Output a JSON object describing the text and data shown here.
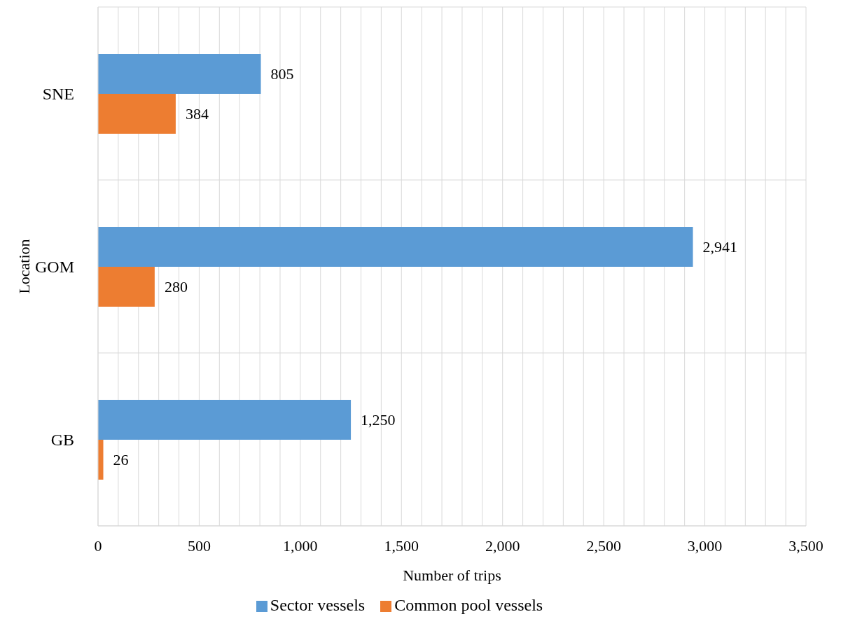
{
  "chart_data": {
    "type": "bar",
    "orientation": "horizontal",
    "xlabel": "Number of trips",
    "ylabel": "Location",
    "categories": [
      "SNE",
      "GOM",
      "GB"
    ],
    "series": [
      {
        "name": "Sector vessels",
        "color": "#5b9bd5",
        "values": [
          805,
          2941,
          1250
        ],
        "value_labels": [
          "805",
          "2,941",
          "1,250"
        ]
      },
      {
        "name": "Common pool vessels",
        "color": "#ed7d31",
        "values": [
          384,
          280,
          26
        ],
        "value_labels": [
          "384",
          "280",
          "26"
        ]
      }
    ],
    "xlim": [
      0,
      3500
    ],
    "xticks": [
      0,
      {
        "value": 100,
        "label": null
      },
      {
        "value": 200,
        "label": null
      },
      {
        "value": 300,
        "label": null
      },
      {
        "value": 400,
        "label": null
      },
      500,
      {
        "value": 600,
        "label": null
      },
      {
        "value": 700,
        "label": null
      },
      {
        "value": 800,
        "label": null
      },
      {
        "value": 900,
        "label": null
      },
      {
        "value": 1000,
        "label": "1,000"
      },
      {
        "value": 1100,
        "label": null
      },
      {
        "value": 1200,
        "label": null
      },
      {
        "value": 1300,
        "label": null
      },
      {
        "value": 1400,
        "label": null
      },
      {
        "value": 1500,
        "label": "1,500"
      },
      {
        "value": 1600,
        "label": null
      },
      {
        "value": 1700,
        "label": null
      },
      {
        "value": 1800,
        "label": null
      },
      {
        "value": 1900,
        "label": null
      },
      {
        "value": 2000,
        "label": "2,000"
      },
      {
        "value": 2100,
        "label": null
      },
      {
        "value": 2200,
        "label": null
      },
      {
        "value": 2300,
        "label": null
      },
      {
        "value": 2400,
        "label": null
      },
      {
        "value": 2500,
        "label": "2,500"
      },
      {
        "value": 2600,
        "label": null
      },
      {
        "value": 2700,
        "label": null
      },
      {
        "value": 2800,
        "label": null
      },
      {
        "value": 2900,
        "label": null
      },
      {
        "value": 3000,
        "label": "3,000"
      },
      {
        "value": 3100,
        "label": null
      },
      {
        "value": 3200,
        "label": null
      },
      {
        "value": 3300,
        "label": null
      },
      {
        "value": 3400,
        "label": null
      },
      {
        "value": 3500,
        "label": "3,500"
      }
    ],
    "grid": true,
    "legend": "bottom"
  }
}
